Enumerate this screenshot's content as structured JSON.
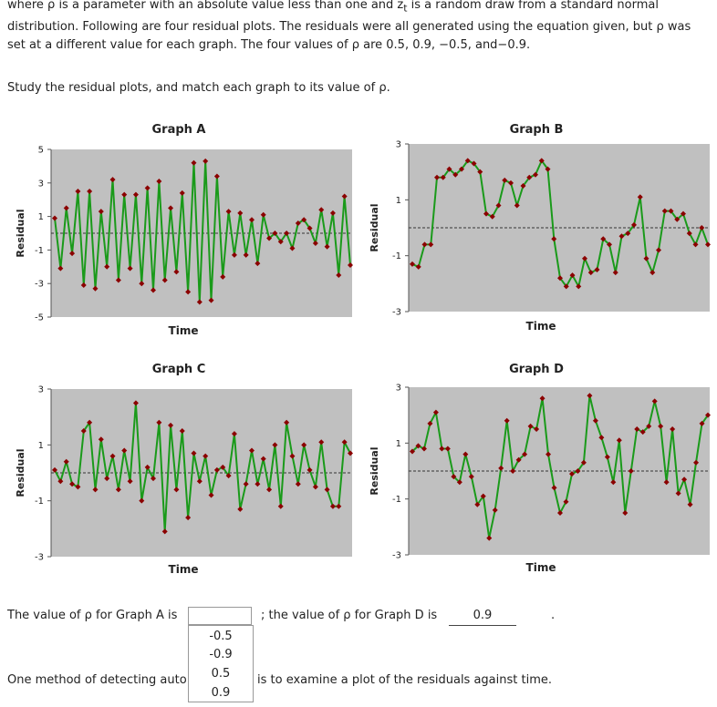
{
  "intro": {
    "part1": "where ρ is a parameter with an absolute value less than one and z",
    "sub": "t",
    "part2": " is a random draw from a standard normal distribution. Following are four residual plots. The residuals were all generated using the equation given, but ρ was set at a different value for each graph. The four values of ρ are 0.5, 0.9, −0.5, and−0.9."
  },
  "instruction": "Study the residual plots, and match each graph to its value of ρ.",
  "colors": {
    "plot_bg": "#c0c0c0",
    "line": "#1a9a1a",
    "marker": "#8b0000",
    "dash": "#333333"
  },
  "chart_data": [
    {
      "type": "line",
      "title": "Graph A",
      "xlabel": "Time",
      "ylabel": "Residual",
      "ylim": [
        -5,
        5
      ],
      "yticks": [
        "5",
        "3",
        "1",
        "-1",
        "-3",
        "-5"
      ],
      "values": [
        0.9,
        -2.1,
        1.5,
        -1.2,
        2.5,
        -3.1,
        2.5,
        -3.3,
        1.3,
        -2.0,
        3.2,
        -2.8,
        2.3,
        -2.1,
        2.3,
        -3.0,
        2.7,
        -3.4,
        3.1,
        -2.8,
        1.5,
        -2.3,
        2.4,
        -3.5,
        4.2,
        -4.1,
        4.3,
        -4.0,
        3.4,
        -2.6,
        1.3,
        -1.3,
        1.2,
        -1.3,
        0.8,
        -1.8,
        1.1,
        -0.3,
        0.0,
        -0.5,
        0.0,
        -0.9,
        0.6,
        0.8,
        0.3,
        -0.6,
        1.4,
        -0.8,
        1.2,
        -2.5,
        2.2,
        -1.9
      ]
    },
    {
      "type": "line",
      "title": "Graph B",
      "xlabel": "Time",
      "ylabel": "Residual",
      "ylim": [
        -3,
        3
      ],
      "yticks": [
        "3",
        "1",
        "-1",
        "-3"
      ],
      "values": [
        -1.3,
        -1.4,
        -0.6,
        -0.6,
        1.8,
        1.8,
        2.1,
        1.9,
        2.1,
        2.4,
        2.3,
        2.0,
        0.5,
        0.4,
        0.8,
        1.7,
        1.6,
        0.8,
        1.5,
        1.8,
        1.9,
        2.4,
        2.1,
        -0.4,
        -1.8,
        -2.1,
        -1.7,
        -2.1,
        -1.1,
        -1.6,
        -1.5,
        -0.4,
        -0.6,
        -1.6,
        -0.3,
        -0.2,
        0.1,
        1.1,
        -1.1,
        -1.6,
        -0.8,
        0.6,
        0.6,
        0.3,
        0.5,
        -0.2,
        -0.6,
        0.0,
        -0.6
      ]
    },
    {
      "type": "line",
      "title": "Graph C",
      "xlabel": "Time",
      "ylabel": "Residual",
      "ylim": [
        -3,
        3
      ],
      "yticks": [
        "3",
        "1",
        "-1",
        "-3"
      ],
      "values": [
        0.1,
        -0.3,
        0.4,
        -0.4,
        -0.5,
        1.5,
        1.8,
        -0.6,
        1.2,
        -0.2,
        0.6,
        -0.6,
        0.8,
        -0.3,
        2.5,
        -1.0,
        0.2,
        -0.2,
        1.8,
        -2.1,
        1.7,
        -0.6,
        1.5,
        -1.6,
        0.7,
        -0.3,
        0.6,
        -0.8,
        0.1,
        0.2,
        -0.1,
        1.4,
        -1.3,
        -0.4,
        0.8,
        -0.4,
        0.5,
        -0.6,
        1.0,
        -1.2,
        1.8,
        0.6,
        -0.4,
        1.0,
        0.1,
        -0.5,
        1.1,
        -0.6,
        -1.2,
        -1.2,
        1.1,
        0.7
      ]
    },
    {
      "type": "line",
      "title": "Graph D",
      "xlabel": "Time",
      "ylabel": "Residual",
      "ylim": [
        -3,
        3
      ],
      "yticks": [
        "3",
        "1",
        "-1",
        "-3"
      ],
      "values": [
        0.7,
        0.9,
        0.8,
        1.7,
        2.1,
        0.8,
        0.8,
        -0.2,
        -0.4,
        0.6,
        -0.2,
        -1.2,
        -0.9,
        -2.4,
        -1.4,
        0.1,
        1.8,
        0.0,
        0.4,
        0.6,
        1.6,
        1.5,
        2.6,
        0.6,
        -0.6,
        -1.5,
        -1.1,
        -0.1,
        0.0,
        0.3,
        2.7,
        1.8,
        1.2,
        0.5,
        -0.4,
        1.1,
        -1.5,
        0.0,
        1.5,
        1.4,
        1.6,
        2.5,
        1.6,
        -0.4,
        1.5,
        -0.8,
        -0.3,
        -1.2,
        0.3,
        1.7,
        2.0
      ]
    }
  ],
  "answer": {
    "prefix": "The value of ρ for Graph A is",
    "middle": "; the value of ρ for Graph D is",
    "d_value": "0.9",
    "suffix": "."
  },
  "dropdown": {
    "options": [
      "-0.5",
      "-0.9",
      "0.5",
      "0.9"
    ]
  },
  "method": {
    "start": "One method of detecting auto",
    "end": "is to examine a plot of the residuals against time."
  }
}
